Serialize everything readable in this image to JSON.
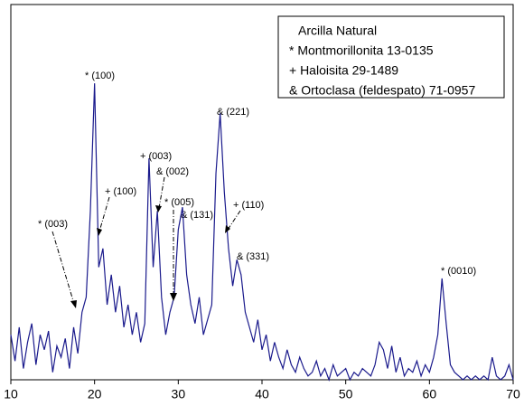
{
  "chart_data": {
    "type": "line",
    "legend_title": "Arcilla Natural",
    "legend_entries": [
      "* Montmorillonita 13-0135",
      "+ Haloisita 29-1489",
      "& Ortoclasa (feldespato) 71-0957"
    ],
    "annotations": [
      "* (100)",
      "& (221)",
      "+ (003)",
      "& (002)",
      "+ (100)",
      "* (005)",
      "& (131)",
      "+ (110)",
      "* (003)",
      "& (331)",
      "* (0010)"
    ],
    "xlim": [
      10,
      70
    ],
    "xticks": [
      10,
      20,
      30,
      40,
      50,
      60,
      70
    ],
    "ylim": [
      0,
      100
    ],
    "series": [
      {
        "color": "#1a1a8c",
        "x": [
          10,
          10.5,
          11,
          11.5,
          12,
          12.5,
          13,
          13.5,
          14,
          14.5,
          15,
          15.5,
          16,
          16.5,
          17,
          17.5,
          18,
          18.5,
          19,
          19.5,
          20,
          20.5,
          21,
          21.5,
          22,
          22.5,
          23,
          23.5,
          24,
          24.5,
          25,
          25.5,
          26,
          26.5,
          27,
          27.5,
          28,
          28.5,
          29,
          29.5,
          30,
          30.5,
          31,
          31.5,
          32,
          32.5,
          33,
          33.5,
          34,
          34.5,
          35,
          35.5,
          36,
          36.5,
          37,
          37.5,
          38,
          38.5,
          39,
          39.5,
          40,
          40.5,
          41,
          41.5,
          42,
          42.5,
          43,
          43.5,
          44,
          44.5,
          45,
          45.5,
          46,
          46.5,
          47,
          47.5,
          48,
          48.5,
          49,
          49.5,
          50,
          50.5,
          51,
          51.5,
          52,
          52.5,
          53,
          53.5,
          54,
          54.5,
          55,
          55.5,
          56,
          56.5,
          57,
          57.5,
          58,
          58.5,
          59,
          59.5,
          60,
          60.5,
          61,
          61.5,
          62,
          62.5,
          63,
          63.5,
          64,
          64.5,
          65,
          65.5,
          66,
          66.5,
          67,
          67.5,
          68,
          68.5,
          69,
          69.5,
          70
        ],
        "values": [
          12,
          5,
          14,
          3,
          10,
          15,
          4,
          12,
          8,
          13,
          2,
          9,
          6,
          11,
          3,
          14,
          7,
          18,
          22,
          45,
          79,
          30,
          35,
          20,
          28,
          18,
          25,
          14,
          20,
          12,
          18,
          10,
          15,
          59,
          30,
          45,
          22,
          12,
          18,
          22,
          40,
          46,
          28,
          20,
          15,
          22,
          12,
          16,
          20,
          55,
          71,
          50,
          35,
          25,
          32,
          28,
          18,
          14,
          10,
          16,
          8,
          12,
          5,
          10,
          6,
          3,
          8,
          4,
          2,
          6,
          3,
          1,
          2,
          5,
          1,
          3,
          0,
          4,
          1,
          2,
          3,
          0,
          2,
          1,
          3,
          2,
          1,
          4,
          10,
          8,
          3,
          9,
          2,
          6,
          1,
          3,
          2,
          5,
          1,
          4,
          2,
          6,
          12,
          27,
          15,
          4,
          2,
          1,
          0,
          1,
          0,
          1,
          0,
          1,
          0,
          6,
          1,
          0,
          1,
          4,
          0
        ]
      }
    ]
  }
}
